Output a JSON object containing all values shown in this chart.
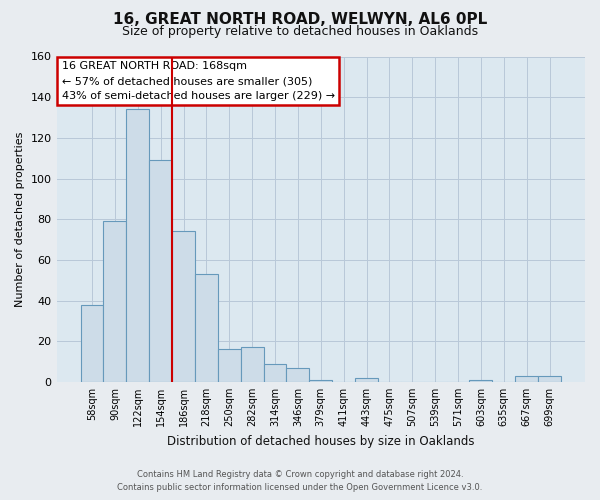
{
  "title": "16, GREAT NORTH ROAD, WELWYN, AL6 0PL",
  "subtitle": "Size of property relative to detached houses in Oaklands",
  "bar_labels": [
    "58sqm",
    "90sqm",
    "122sqm",
    "154sqm",
    "186sqm",
    "218sqm",
    "250sqm",
    "282sqm",
    "314sqm",
    "346sqm",
    "379sqm",
    "411sqm",
    "443sqm",
    "475sqm",
    "507sqm",
    "539sqm",
    "571sqm",
    "603sqm",
    "635sqm",
    "667sqm",
    "699sqm"
  ],
  "bar_values": [
    38,
    79,
    134,
    109,
    74,
    53,
    16,
    17,
    9,
    7,
    1,
    0,
    2,
    0,
    0,
    0,
    0,
    1,
    0,
    3,
    3
  ],
  "bar_color": "#cddce8",
  "bar_edge_color": "#6699bb",
  "ylim": [
    0,
    160
  ],
  "yticks": [
    0,
    20,
    40,
    60,
    80,
    100,
    120,
    140,
    160
  ],
  "ylabel": "Number of detached properties",
  "xlabel": "Distribution of detached houses by size in Oaklands",
  "property_label": "16 GREAT NORTH ROAD: 168sqm",
  "annotation_line1": "← 57% of detached houses are smaller (305)",
  "annotation_line2": "43% of semi-detached houses are larger (229) →",
  "vline_x_index": 3.5,
  "vline_color": "#cc0000",
  "box_color": "#cc0000",
  "footer_line1": "Contains HM Land Registry data © Crown copyright and database right 2024.",
  "footer_line2": "Contains public sector information licensed under the Open Government Licence v3.0.",
  "bg_color": "#e8ecf0",
  "plot_bg_color": "#dce8f0",
  "grid_color": "#b8c8d8",
  "title_fontsize": 11,
  "subtitle_fontsize": 9
}
